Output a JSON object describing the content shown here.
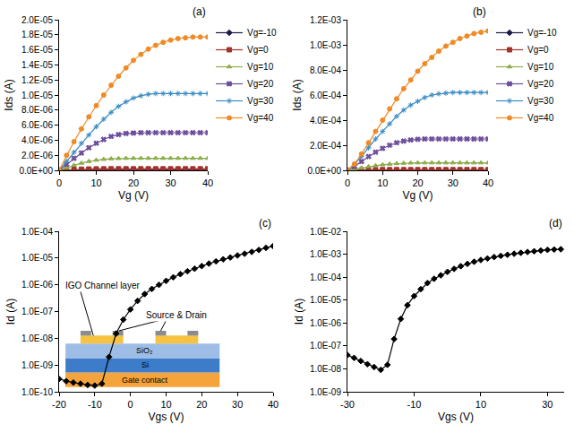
{
  "chart_data": [
    {
      "type": "line",
      "title": "(a)",
      "x_label": "Vg (V)",
      "y_label": "Ids (A)",
      "x": [
        0,
        2,
        4,
        6,
        8,
        10,
        12,
        14,
        16,
        18,
        20,
        22,
        24,
        26,
        28,
        30,
        32,
        34,
        36,
        38,
        40
      ],
      "series": [
        {
          "name": "Vg=-10",
          "color": "#1c1c4a",
          "marker": "diamond",
          "values": [
            0,
            1e-08,
            1e-08,
            1e-08,
            1e-08,
            1e-08,
            1e-08,
            1e-08,
            1e-08,
            1e-08,
            1e-08,
            1e-08,
            1e-08,
            1e-08,
            1e-08,
            1e-08,
            1e-08,
            1e-08,
            1e-08,
            1e-08,
            1e-08
          ]
        },
        {
          "name": "Vg=0",
          "color": "#a3322c",
          "marker": "square",
          "values": [
            0,
            6e-08,
            1.1e-07,
            1.5e-07,
            1.7e-07,
            1.85e-07,
            1.95e-07,
            2e-07,
            2e-07,
            2e-07,
            2e-07,
            2e-07,
            2e-07,
            2e-07,
            2e-07,
            2e-07,
            2e-07,
            2e-07,
            2e-07,
            2e-07,
            2e-07
          ]
        },
        {
          "name": "Vg=10",
          "color": "#8fac4c",
          "marker": "triangle-up",
          "values": [
            0,
            3.5e-07,
            6.8e-07,
            9.6e-07,
            1.19e-06,
            1.36e-06,
            1.47e-06,
            1.54e-06,
            1.58e-06,
            1.6e-06,
            1.6e-06,
            1.6e-06,
            1.6e-06,
            1.6e-06,
            1.6e-06,
            1.6e-06,
            1.6e-06,
            1.6e-06,
            1.6e-06,
            1.6e-06,
            1.6e-06
          ]
        },
        {
          "name": "Vg=20",
          "color": "#6c4e9c",
          "marker": "x",
          "values": [
            0,
            8e-07,
            1.6e-06,
            2.3e-06,
            3e-06,
            3.6e-06,
            4.1e-06,
            4.5e-06,
            4.75e-06,
            4.9e-06,
            4.95e-06,
            5e-06,
            5e-06,
            5e-06,
            5e-06,
            5e-06,
            5e-06,
            5e-06,
            5e-06,
            5e-06,
            5e-06
          ]
        },
        {
          "name": "Vg=30",
          "color": "#3a8cc4",
          "marker": "asterisk-open",
          "values": [
            0,
            1.2e-06,
            2.4e-06,
            3.6e-06,
            4.7e-06,
            5.8e-06,
            6.8e-06,
            7.7e-06,
            8.5e-06,
            9.1e-06,
            9.6e-06,
            9.9e-06,
            1.01e-05,
            1.02e-05,
            1.02e-05,
            1.02e-05,
            1.02e-05,
            1.02e-05,
            1.02e-05,
            1.02e-05,
            1.02e-05
          ]
        },
        {
          "name": "Vg=40",
          "color": "#f08a24",
          "marker": "circle",
          "values": [
            0,
            2e-06,
            3.8e-06,
            5.5e-06,
            7.1e-06,
            8.6e-06,
            1e-05,
            1.13e-05,
            1.25e-05,
            1.36e-05,
            1.46e-05,
            1.54e-05,
            1.61e-05,
            1.66e-05,
            1.7e-05,
            1.73e-05,
            1.75e-05,
            1.76e-05,
            1.77e-05,
            1.77e-05,
            1.77e-05
          ]
        }
      ],
      "xlim": [
        0,
        40
      ],
      "xticks": [
        0,
        10,
        20,
        30,
        40
      ],
      "ylim": [
        0,
        2e-05
      ],
      "yticks": [
        {
          "value": 0,
          "label": "0.0E+00"
        },
        {
          "value": 2e-06,
          "label": "2.0E-06"
        },
        {
          "value": 4e-06,
          "label": "4.0E-06"
        },
        {
          "value": 6e-06,
          "label": "6.0E-06"
        },
        {
          "value": 8e-06,
          "label": "8.0E-06"
        },
        {
          "value": 1e-05,
          "label": "1.0E-05"
        },
        {
          "value": 1.2e-05,
          "label": "1.2E-05"
        },
        {
          "value": 1.4e-05,
          "label": "1.4E-05"
        },
        {
          "value": 1.6e-05,
          "label": "1.6E-05"
        },
        {
          "value": 1.8e-05,
          "label": "1.8E-05"
        },
        {
          "value": 2e-05,
          "label": "2.0E-05"
        }
      ],
      "grid": false,
      "legend": "right"
    },
    {
      "type": "line",
      "title": "(b)",
      "x_label": "Vg (V)",
      "y_label": "Ids (A)",
      "x": [
        0,
        2,
        4,
        6,
        8,
        10,
        12,
        14,
        16,
        18,
        20,
        22,
        24,
        26,
        28,
        30,
        32,
        34,
        36,
        38,
        40
      ],
      "series": [
        {
          "name": "Vg=-10",
          "color": "#1c1c4a",
          "marker": "diamond",
          "values": [
            0,
            2e-07,
            2e-07,
            2e-07,
            2e-07,
            2e-07,
            2e-07,
            2e-07,
            2e-07,
            2e-07,
            2e-07,
            2e-07,
            2e-07,
            2e-07,
            2e-07,
            2e-07,
            2e-07,
            2e-07,
            2e-07,
            2e-07,
            2e-07
          ]
        },
        {
          "name": "Vg=0",
          "color": "#a3322c",
          "marker": "square",
          "values": [
            0,
            1.5e-06,
            3e-06,
            4e-06,
            4.5e-06,
            5e-06,
            5e-06,
            5e-06,
            5e-06,
            5e-06,
            5e-06,
            5e-06,
            5e-06,
            5e-06,
            5e-06,
            5e-06,
            5e-06,
            5e-06,
            5e-06,
            5e-06,
            5e-06
          ]
        },
        {
          "name": "Vg=10",
          "color": "#8fac4c",
          "marker": "triangle-up",
          "values": [
            0,
            1e-05,
            2e-05,
            3e-05,
            3.8e-05,
            4.5e-05,
            5e-05,
            5.4e-05,
            5.7e-05,
            5.9e-05,
            6e-05,
            6e-05,
            6e-05,
            6e-05,
            6e-05,
            6e-05,
            6e-05,
            6e-05,
            6e-05,
            6e-05,
            6e-05
          ]
        },
        {
          "name": "Vg=20",
          "color": "#6c4e9c",
          "marker": "x",
          "values": [
            0,
            3e-05,
            7e-05,
            0.00011,
            0.000145,
            0.000175,
            0.0002,
            0.00022,
            0.000233,
            0.000242,
            0.000247,
            0.00025,
            0.00025,
            0.00025,
            0.00025,
            0.00025,
            0.00025,
            0.00025,
            0.00025,
            0.00025,
            0.00025
          ]
        },
        {
          "name": "Vg=30",
          "color": "#3a8cc4",
          "marker": "asterisk-open",
          "values": [
            0,
            5e-05,
            0.00011,
            0.00018,
            0.00025,
            0.00031,
            0.00037,
            0.00043,
            0.00048,
            0.00052,
            0.00055,
            0.00058,
            0.0006,
            0.00061,
            0.000615,
            0.00062,
            0.00062,
            0.00062,
            0.00062,
            0.00062,
            0.00062
          ]
        },
        {
          "name": "Vg=40",
          "color": "#f08a24",
          "marker": "circle",
          "values": [
            0,
            5e-05,
            0.00013,
            0.00022,
            0.00031,
            0.0004,
            0.00049,
            0.00057,
            0.00065,
            0.00072,
            0.00079,
            0.00085,
            0.0009,
            0.00095,
            0.00099,
            0.00102,
            0.00105,
            0.00107,
            0.00109,
            0.0011,
            0.00111
          ]
        }
      ],
      "xlim": [
        0,
        40
      ],
      "xticks": [
        0,
        10,
        20,
        30,
        40
      ],
      "ylim": [
        0,
        0.0012
      ],
      "yticks": [
        {
          "value": 0,
          "label": "0.0E+00"
        },
        {
          "value": 0.0002,
          "label": "2.0E-04"
        },
        {
          "value": 0.0004,
          "label": "4.0E-04"
        },
        {
          "value": 0.0006,
          "label": "6.0E-04"
        },
        {
          "value": 0.0008,
          "label": "8.0E-04"
        },
        {
          "value": 0.001,
          "label": "1.0E-03"
        },
        {
          "value": 0.0012,
          "label": "1.2E-03"
        }
      ],
      "grid": false,
      "legend": "right"
    },
    {
      "type": "line",
      "title": "(c)",
      "x_label": "Vgs (V)",
      "y_label": "Id (A)",
      "x": [
        -20,
        -18,
        -16,
        -14,
        -12,
        -10,
        -8,
        -6,
        -4,
        -2,
        0,
        2,
        4,
        6,
        8,
        10,
        12,
        14,
        16,
        18,
        20,
        22,
        24,
        26,
        28,
        30,
        32,
        34,
        36,
        38,
        40
      ],
      "series": [
        {
          "color": "#000000",
          "marker": "diamond",
          "values": [
            3e-10,
            2.5e-10,
            2.2e-10,
            2e-10,
            1.8e-10,
            1.7e-10,
            2e-10,
            2e-09,
            1.5e-08,
            5e-08,
            1.2e-07,
            2.5e-07,
            4.5e-07,
            7e-07,
            1e-06,
            1.4e-06,
            1.9e-06,
            2.5e-06,
            3.2e-06,
            4e-06,
            5e-06,
            6.2e-06,
            7.5e-06,
            9e-06,
            1.05e-05,
            1.25e-05,
            1.45e-05,
            1.7e-05,
            2e-05,
            2.4e-05,
            2.8e-05
          ]
        }
      ],
      "xlim": [
        -20,
        40
      ],
      "xticks": [
        -20,
        -10,
        0,
        10,
        20,
        30,
        40
      ],
      "ylim": [
        1e-10,
        0.0001
      ],
      "yticks": [
        {
          "value": 1e-10,
          "label": "1.0E-10"
        },
        {
          "value": 1e-09,
          "label": "1.0E-09"
        },
        {
          "value": 1e-08,
          "label": "1.0E-08"
        },
        {
          "value": 1e-07,
          "label": "1.0E-07"
        },
        {
          "value": 1e-06,
          "label": "1.0E-06"
        },
        {
          "value": 1e-05,
          "label": "1.0E-05"
        },
        {
          "value": 0.0001,
          "label": "1.0E-04"
        }
      ],
      "log": "y",
      "grid": false,
      "annotations": [
        "IGO Channel layer",
        "Source & Drain",
        "SiO₂",
        "Si",
        "Gate contact"
      ]
    },
    {
      "type": "line",
      "title": "(d)",
      "x_label": "Vgs (V)",
      "y_label": "Id (A)",
      "x": [
        -30,
        -28,
        -26,
        -24,
        -22,
        -20,
        -18,
        -16,
        -14,
        -12,
        -10,
        -8,
        -6,
        -4,
        -2,
        0,
        2,
        4,
        6,
        8,
        10,
        12,
        14,
        16,
        18,
        20,
        22,
        24,
        26,
        28,
        30,
        32,
        34
      ],
      "series": [
        {
          "color": "#000000",
          "marker": "diamond",
          "values": [
            4e-08,
            3e-08,
            2.2e-08,
            1.6e-08,
            1.2e-08,
            9e-09,
            1.5e-08,
            2e-07,
            1.5e-06,
            6e-06,
            1.5e-05,
            3e-05,
            5.5e-05,
            8.5e-05,
            0.00012,
            0.00017,
            0.00023,
            0.0003,
            0.00038,
            0.00047,
            0.00056,
            0.00065,
            0.00075,
            0.00085,
            0.00095,
            0.00105,
            0.00115,
            0.00125,
            0.00135,
            0.00145,
            0.00155,
            0.0016,
            0.00165
          ]
        }
      ],
      "xlim": [
        -30,
        35
      ],
      "xticks": [
        -30,
        -10,
        10,
        30
      ],
      "ylim": [
        1e-09,
        0.01
      ],
      "yticks": [
        {
          "value": 1e-09,
          "label": "1.0E-09"
        },
        {
          "value": 1e-08,
          "label": "1.0E-08"
        },
        {
          "value": 1e-07,
          "label": "1.0E-07"
        },
        {
          "value": 1e-06,
          "label": "1.0E-06"
        },
        {
          "value": 1e-05,
          "label": "1.0E-05"
        },
        {
          "value": 0.0001,
          "label": "1.0E-04"
        },
        {
          "value": 0.001,
          "label": "1.0E-03"
        },
        {
          "value": 0.01,
          "label": "1.0E-02"
        }
      ],
      "log": "y",
      "grid": false
    }
  ]
}
